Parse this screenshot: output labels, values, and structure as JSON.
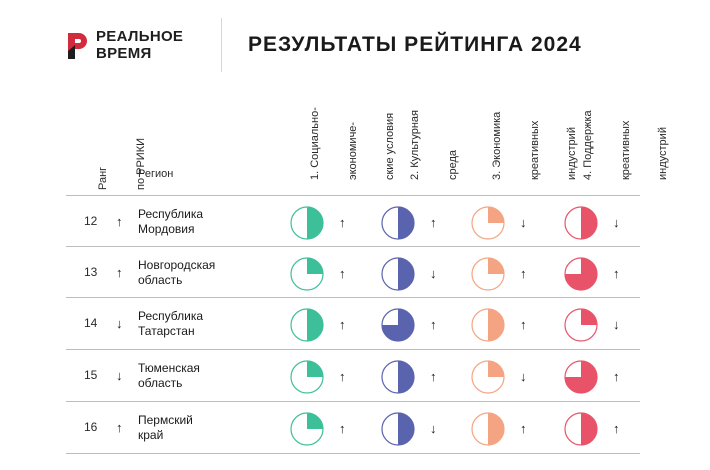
{
  "brand": {
    "line1": "РЕАЛЬНОЕ",
    "line2": "ВРЕМЯ",
    "color": "#d22b3e"
  },
  "title": "РЕЗУЛЬТАТЫ РЕЙТИНГА 2024",
  "columns": {
    "rank_header": [
      "Ранг",
      "по РРИКИ"
    ],
    "region_header": "Регион",
    "indices": [
      {
        "key": "socio",
        "label": [
          "1. Социально-",
          "экономиче-",
          "ские условия"
        ],
        "color": "#3dbf99"
      },
      {
        "key": "culture",
        "label": [
          "2. Культурная",
          "среда"
        ],
        "color": "#5a63ad"
      },
      {
        "key": "economy",
        "label": [
          "3. Экономика",
          "креативных",
          "индустрий"
        ],
        "color": "#f4a482"
      },
      {
        "key": "support",
        "label": [
          "4. Поддержка",
          "креативных",
          "индустрий"
        ],
        "color": "#e9536a"
      }
    ]
  },
  "rows": [
    {
      "rank": "12",
      "rank_trend": "up",
      "region": "Республика\nМордовия",
      "indices": [
        {
          "fill": 0.5,
          "trend": "up"
        },
        {
          "fill": 0.5,
          "trend": "up"
        },
        {
          "fill": 0.25,
          "trend": "down"
        },
        {
          "fill": 0.5,
          "trend": "down"
        }
      ]
    },
    {
      "rank": "13",
      "rank_trend": "up",
      "region": "Новгородская\nобласть",
      "indices": [
        {
          "fill": 0.25,
          "trend": "up"
        },
        {
          "fill": 0.5,
          "trend": "down"
        },
        {
          "fill": 0.25,
          "trend": "up"
        },
        {
          "fill": 0.75,
          "trend": "up"
        }
      ]
    },
    {
      "rank": "14",
      "rank_trend": "down",
      "region": "Республика\nТатарстан",
      "indices": [
        {
          "fill": 0.5,
          "trend": "up"
        },
        {
          "fill": 0.75,
          "trend": "up"
        },
        {
          "fill": 0.5,
          "trend": "up"
        },
        {
          "fill": 0.25,
          "trend": "down"
        }
      ]
    },
    {
      "rank": "15",
      "rank_trend": "down",
      "region": "Тюменская\nобласть",
      "indices": [
        {
          "fill": 0.25,
          "trend": "up"
        },
        {
          "fill": 0.5,
          "trend": "up"
        },
        {
          "fill": 0.25,
          "trend": "down"
        },
        {
          "fill": 0.75,
          "trend": "up"
        }
      ]
    },
    {
      "rank": "16",
      "rank_trend": "up",
      "region": "Пермский\nкрай",
      "indices": [
        {
          "fill": 0.25,
          "trend": "up"
        },
        {
          "fill": 0.5,
          "trend": "down"
        },
        {
          "fill": 0.5,
          "trend": "up"
        },
        {
          "fill": 0.5,
          "trend": "up"
        }
      ]
    }
  ]
}
